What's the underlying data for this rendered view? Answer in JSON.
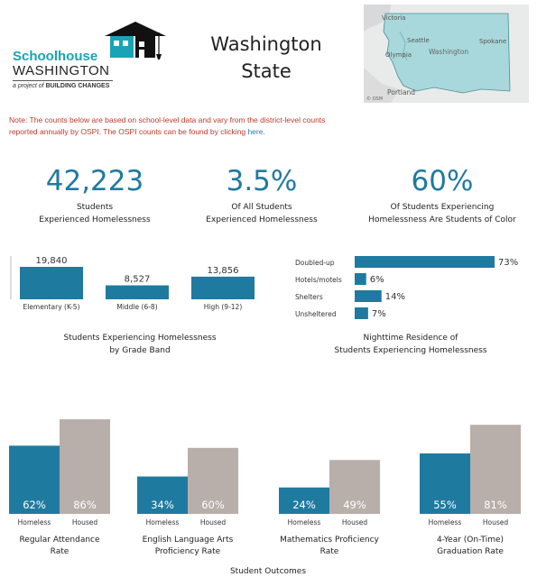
{
  "logo": {
    "line1": "Schoolhouse",
    "line2": "WASHINGTON",
    "tagline_prefix": "a project of",
    "tagline_org": "BUILDING CHANGES"
  },
  "title": {
    "line1": "Washington",
    "line2": "State"
  },
  "map": {
    "labels": [
      "Victoria",
      "Seattle",
      "Olympia",
      "Washington",
      "Spokane",
      "Portland"
    ],
    "attribution": "© OSM"
  },
  "note": {
    "text": "Note: The counts below are based on school-level data and vary from the district-level counts reported annually by OSPI. The OSPI counts can be found by clicking ",
    "link": "here",
    "end": "."
  },
  "kpis": [
    {
      "value": "42,223",
      "label1": "Students",
      "label2": "Experienced Homelessness"
    },
    {
      "value": "3.5%",
      "label1": "Of All Students",
      "label2": "Experienced Homelessness"
    },
    {
      "value": "60%",
      "label1": "Of Students Experiencing",
      "label2": "Homelessness Are Students of Color"
    }
  ],
  "colors": {
    "primary": "#1f7aa0",
    "housed": "#b8aeaa",
    "note": "#c0392b",
    "map_fill": "#a8d8dc"
  },
  "chart_data": [
    {
      "type": "bar",
      "title_lines": [
        "Students Experiencing Homelessness",
        "by Grade Band"
      ],
      "categories": [
        "Elementary (K-5)",
        "Middle (6-8)",
        "High (9-12)"
      ],
      "values": [
        19840,
        8527,
        13856
      ],
      "value_labels": [
        "19,840",
        "8,527",
        "13,856"
      ],
      "ylim": [
        0,
        19840
      ]
    },
    {
      "type": "bar",
      "orientation": "horizontal",
      "title_lines": [
        "Nighttime Residence of",
        "Students Experiencing Homelessness"
      ],
      "categories": [
        "Doubled-up",
        "Hotels/motels",
        "Shelters",
        "Unsheltered"
      ],
      "values": [
        73,
        6,
        14,
        7
      ],
      "value_labels": [
        "73%",
        "6%",
        "14%",
        "7%"
      ],
      "xlim": [
        0,
        73
      ]
    },
    {
      "type": "bar",
      "title": "Student Outcomes",
      "ylim": [
        0,
        100
      ],
      "groups": [
        {
          "name_lines": [
            "Regular Attendance",
            "Rate"
          ],
          "homeless": 62,
          "housed": 86,
          "homeless_label": "62%",
          "housed_label": "86%"
        },
        {
          "name_lines": [
            "English Language Arts",
            "Proficiency Rate"
          ],
          "homeless": 34,
          "housed": 60,
          "homeless_label": "34%",
          "housed_label": "60%"
        },
        {
          "name_lines": [
            "Mathematics Proficiency",
            "Rate"
          ],
          "homeless": 24,
          "housed": 49,
          "homeless_label": "24%",
          "housed_label": "49%"
        },
        {
          "name_lines": [
            "4-Year (On-Time)",
            "Graduation Rate"
          ],
          "homeless": 55,
          "housed": 81,
          "homeless_label": "55%",
          "housed_label": "81%"
        }
      ],
      "series": [
        {
          "name": "Homeless"
        },
        {
          "name": "Housed"
        }
      ]
    }
  ]
}
